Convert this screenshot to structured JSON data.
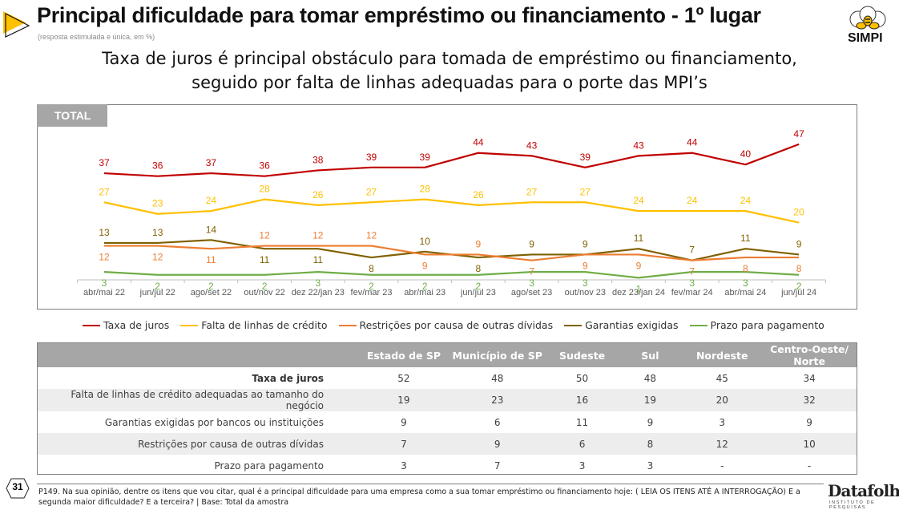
{
  "header": {
    "title": "Principal dificuldade para tomar empréstimo ou financiamento - 1º lugar",
    "note": "(resposta estimulada e única, em %)",
    "headline_line1": "Taxa de juros é principal obstáculo para tomada de empréstimo ou financiamento,",
    "headline_line2": "seguido por falta de linhas adequadas para o porte das MPI’s",
    "logo_text": "SIMPI"
  },
  "chart_data": {
    "type": "line",
    "panel_label": "TOTAL",
    "title": "Principal dificuldade para tomar empréstimo ou financiamento - 1º lugar",
    "xlabel": "",
    "ylabel": "%",
    "ylim": [
      0,
      50
    ],
    "grid": false,
    "legend_position": "bottom",
    "categories": [
      "abr/mai 22",
      "jun/jul 22",
      "ago/set 22",
      "out/nov 22",
      "dez 22/jan 23",
      "fev/mar 23",
      "abr/mai 23",
      "jun/jul 23",
      "ago/set 23",
      "out/nov 23",
      "dez 23/jan 24",
      "fev/mar 24",
      "abr/mai 24",
      "jun/jul 24"
    ],
    "series": [
      {
        "name": "Taxa de juros",
        "color": "#c00000",
        "values": [
          37,
          36,
          37,
          36,
          38,
          39,
          39,
          44,
          43,
          39,
          43,
          44,
          40,
          47
        ],
        "label_pos": [
          "above",
          "above",
          "above",
          "above",
          "above",
          "above",
          "above",
          "above",
          "above",
          "above",
          "above",
          "above",
          "above",
          "above"
        ]
      },
      {
        "name": "Falta de linhas de crédito",
        "color": "#ffc000",
        "values": [
          27,
          23,
          24,
          28,
          26,
          27,
          28,
          26,
          27,
          27,
          24,
          24,
          24,
          20
        ],
        "label_pos": [
          "above",
          "above",
          "above",
          "above",
          "above",
          "above",
          "above",
          "above",
          "above",
          "above",
          "above",
          "above",
          "above",
          "above"
        ]
      },
      {
        "name": "Restrições por causa de outras dívidas",
        "color": "#ed7d31",
        "values": [
          12,
          12,
          11,
          12,
          12,
          12,
          9,
          9,
          7,
          9,
          9,
          7,
          8,
          8
        ],
        "label_pos": [
          "below",
          "below",
          "below",
          "above",
          "above",
          "above",
          "below",
          "above",
          "below",
          "below",
          "below",
          "below",
          "below",
          "below"
        ]
      },
      {
        "name": "Garantias exigidas",
        "color": "#806000",
        "values": [
          13,
          13,
          14,
          11,
          11,
          8,
          10,
          8,
          9,
          9,
          11,
          7,
          11,
          9
        ],
        "label_pos": [
          "above",
          "above",
          "above",
          "below",
          "below",
          "below",
          "above",
          "below",
          "above",
          "above",
          "above",
          "above",
          "above",
          "above"
        ]
      },
      {
        "name": "Prazo para pagamento",
        "color": "#70ad47",
        "values": [
          3,
          2,
          2,
          2,
          3,
          2,
          2,
          2,
          3,
          3,
          1,
          3,
          3,
          2
        ],
        "label_pos": [
          "below",
          "below",
          "below",
          "below",
          "below",
          "below",
          "below",
          "below",
          "below",
          "below",
          "below",
          "below",
          "below",
          "below"
        ]
      }
    ]
  },
  "table": {
    "columns": [
      "",
      "Estado de  SP",
      "Município de SP",
      "Sudeste",
      "Sul",
      "Nordeste",
      "Centro-Oeste/ Norte"
    ],
    "rows": [
      {
        "label": "Taxa de juros",
        "bold": true,
        "values": [
          "52",
          "48",
          "50",
          "48",
          "45",
          "34"
        ]
      },
      {
        "label": "Falta de linhas de crédito adequadas ao tamanho do negócio",
        "bold": false,
        "values": [
          "19",
          "23",
          "16",
          "19",
          "20",
          "32"
        ]
      },
      {
        "label": "Garantias exigidas por bancos ou instituições",
        "bold": false,
        "values": [
          "9",
          "6",
          "11",
          "9",
          "3",
          "9"
        ]
      },
      {
        "label": "Restrições por causa de outras dívidas",
        "bold": false,
        "values": [
          "7",
          "9",
          "6",
          "8",
          "12",
          "10"
        ]
      },
      {
        "label": "Prazo para pagamento",
        "bold": false,
        "values": [
          "3",
          "7",
          "3",
          "3",
          "-",
          "-"
        ]
      }
    ]
  },
  "footer": {
    "page_number": "31",
    "footnote": "P149. Na sua opinião, dentre os itens que vou citar, qual é a principal dificuldade para uma empresa como a sua tomar empréstimo ou financiamento hoje: ( LEIA OS ITENS ATÉ A INTERROGAÇÃO) E a segunda maior dificuldade? E a terceira?  |  Base: Total da amostra",
    "brand": "Datafolha",
    "brand_sub": "INSTITUTO DE PESQUISAS"
  },
  "colors": {
    "accent_yellow": "#ffc000",
    "panel_gray": "#a6a6a6"
  }
}
